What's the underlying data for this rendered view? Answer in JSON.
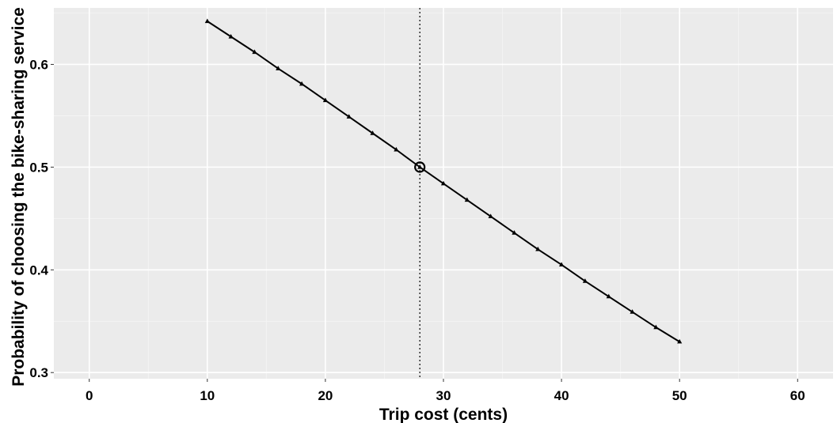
{
  "chart_data": {
    "type": "line",
    "title": "",
    "xlabel": "Trip cost (cents)",
    "ylabel": "Probability of choosing the bike-sharing service",
    "xlim": [
      -3,
      63
    ],
    "ylim": [
      0.294,
      0.655
    ],
    "xticks": [
      0,
      10,
      20,
      30,
      40,
      50,
      60
    ],
    "yticks": [
      0.3,
      0.4,
      0.5,
      0.6
    ],
    "ytick_labels": [
      "0.3",
      "0.4",
      "0.5",
      "0.6"
    ],
    "grid": true,
    "background": "#EBEBEB",
    "series": [
      {
        "marker": "triangle",
        "color": "#000000",
        "x": [
          10,
          12,
          14,
          16,
          18,
          20,
          22,
          24,
          26,
          28,
          30,
          32,
          34,
          36,
          38,
          40,
          42,
          44,
          46,
          48,
          50
        ],
        "y": [
          0.642,
          0.627,
          0.612,
          0.596,
          0.581,
          0.565,
          0.549,
          0.533,
          0.517,
          0.5,
          0.484,
          0.468,
          0.452,
          0.436,
          0.42,
          0.405,
          0.389,
          0.374,
          0.359,
          0.344,
          0.33
        ]
      }
    ],
    "annotations": {
      "vline_x": 28,
      "highlight_point": {
        "x": 28,
        "y": 0.5
      }
    }
  }
}
